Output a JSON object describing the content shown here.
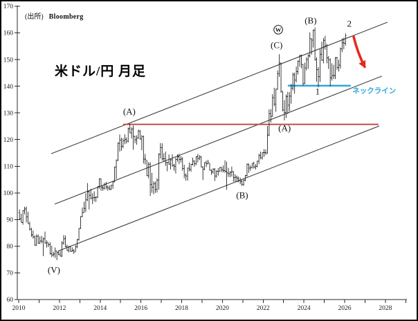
{
  "header": {
    "source_prefix": "(出所)",
    "source_name": "Bloomberg"
  },
  "chart_data": {
    "type": "ohlc-bar",
    "title": "米ドル/円 月足",
    "instrument": "米ドル/円",
    "timeframe": "月足",
    "y_axis": {
      "min": 60,
      "max": 170,
      "step": 10,
      "tick_labels": [
        "60",
        "70",
        "80",
        "90",
        "100",
        "110",
        "120",
        "130",
        "140",
        "150",
        "160",
        "170"
      ]
    },
    "x_axis": {
      "first_tick_year": 2010,
      "last_tick_year": 2029,
      "label_years": [
        2010,
        2012,
        2014,
        2016,
        2018,
        2020,
        2022,
        2024,
        2026,
        2028
      ]
    },
    "series_start": "2010-01",
    "series_name": "USD/JPY monthly high-low-close",
    "bars_hlc": [
      [
        93.8,
        89.8,
        90.3
      ],
      [
        92.2,
        88.9,
        88.9
      ],
      [
        93.5,
        88.1,
        93.4
      ],
      [
        94.8,
        92.0,
        94.0
      ],
      [
        94.9,
        88.9,
        91.0
      ],
      [
        92.9,
        88.5,
        88.4
      ],
      [
        89.2,
        85.9,
        86.4
      ],
      [
        86.9,
        83.5,
        84.2
      ],
      [
        85.9,
        82.9,
        83.5
      ],
      [
        84.0,
        80.2,
        80.4
      ],
      [
        84.4,
        80.2,
        83.7
      ],
      [
        84.5,
        80.9,
        81.1
      ],
      [
        83.7,
        80.9,
        82.0
      ],
      [
        83.9,
        81.1,
        81.8
      ],
      [
        83.3,
        76.3,
        82.8
      ],
      [
        85.5,
        81.0,
        81.2
      ],
      [
        82.2,
        79.5,
        81.5
      ],
      [
        81.3,
        79.7,
        80.6
      ],
      [
        81.5,
        76.9,
        77.2
      ],
      [
        80.2,
        75.9,
        76.7
      ],
      [
        77.9,
        76.1,
        77.1
      ],
      [
        79.5,
        75.6,
        78.2
      ],
      [
        78.3,
        74.8,
        77.6
      ],
      [
        78.2,
        76.6,
        76.9
      ],
      [
        78.3,
        76.2,
        76.3
      ],
      [
        81.9,
        76.0,
        81.2
      ],
      [
        84.2,
        80.6,
        82.8
      ],
      [
        84.0,
        79.7,
        79.8
      ],
      [
        80.6,
        78.2,
        78.4
      ],
      [
        80.1,
        77.7,
        79.8
      ],
      [
        80.1,
        77.9,
        78.1
      ],
      [
        79.6,
        77.9,
        78.4
      ],
      [
        78.9,
        77.1,
        77.9
      ],
      [
        80.4,
        77.9,
        79.8
      ],
      [
        82.8,
        79.3,
        82.5
      ],
      [
        86.8,
        82.1,
        86.7
      ],
      [
        91.3,
        86.5,
        91.1
      ],
      [
        94.5,
        90.9,
        92.6
      ],
      [
        96.7,
        92.6,
        94.2
      ],
      [
        99.9,
        92.8,
        97.4
      ],
      [
        103.7,
        96.9,
        100.5
      ],
      [
        100.9,
        93.8,
        99.1
      ],
      [
        101.5,
        97.6,
        98.0
      ],
      [
        99.9,
        95.8,
        98.2
      ],
      [
        100.6,
        96.8,
        98.3
      ],
      [
        98.7,
        96.6,
        98.4
      ],
      [
        102.4,
        98.0,
        102.4
      ],
      [
        105.4,
        101.6,
        105.3
      ],
      [
        105.4,
        100.8,
        102.0
      ],
      [
        102.8,
        100.8,
        101.8
      ],
      [
        103.8,
        101.2,
        103.2
      ],
      [
        104.1,
        101.3,
        102.2
      ],
      [
        102.8,
        100.8,
        101.8
      ],
      [
        102.8,
        101.1,
        101.3
      ],
      [
        103.1,
        101.1,
        102.8
      ],
      [
        104.3,
        101.5,
        104.1
      ],
      [
        109.9,
        104.0,
        109.7
      ],
      [
        112.5,
        105.2,
        112.3
      ],
      [
        119.0,
        112.0,
        118.6
      ],
      [
        121.9,
        115.5,
        119.8
      ],
      [
        120.7,
        115.8,
        117.5
      ],
      [
        120.5,
        116.7,
        119.6
      ],
      [
        122.0,
        118.3,
        120.1
      ],
      [
        120.8,
        118.5,
        119.4
      ],
      [
        124.5,
        118.9,
        124.1
      ],
      [
        125.9,
        122.5,
        122.5
      ],
      [
        124.6,
        120.4,
        123.9
      ],
      [
        125.3,
        116.2,
        121.2
      ],
      [
        121.4,
        118.6,
        119.9
      ],
      [
        121.6,
        118.1,
        120.6
      ],
      [
        123.8,
        120.3,
        123.1
      ],
      [
        123.6,
        120.0,
        120.2
      ],
      [
        121.7,
        116.0,
        121.1
      ],
      [
        121.5,
        111.0,
        112.7
      ],
      [
        114.6,
        110.7,
        112.6
      ],
      [
        112.2,
        106.3,
        106.5
      ],
      [
        111.5,
        105.5,
        110.7
      ],
      [
        111.5,
        98.9,
        103.2
      ],
      [
        107.5,
        100.0,
        102.1
      ],
      [
        104.3,
        99.5,
        103.4
      ],
      [
        104.3,
        100.0,
        101.3
      ],
      [
        105.5,
        100.1,
        104.8
      ],
      [
        114.8,
        101.2,
        114.5
      ],
      [
        118.7,
        112.9,
        117.0
      ],
      [
        118.6,
        112.1,
        112.8
      ],
      [
        114.9,
        111.6,
        112.8
      ],
      [
        115.5,
        110.1,
        111.4
      ],
      [
        111.6,
        108.1,
        111.5
      ],
      [
        114.4,
        110.5,
        110.8
      ],
      [
        112.9,
        108.8,
        112.4
      ],
      [
        114.5,
        109.8,
        110.3
      ],
      [
        110.9,
        108.3,
        110.0
      ],
      [
        113.3,
        107.3,
        112.5
      ],
      [
        114.5,
        111.7,
        113.6
      ],
      [
        114.7,
        110.8,
        112.5
      ],
      [
        113.8,
        111.4,
        112.7
      ],
      [
        113.4,
        108.3,
        109.2
      ],
      [
        110.5,
        105.5,
        106.7
      ],
      [
        107.3,
        104.6,
        106.3
      ],
      [
        109.5,
        104.6,
        109.3
      ],
      [
        111.4,
        108.1,
        108.8
      ],
      [
        110.9,
        107.9,
        110.7
      ],
      [
        113.2,
        110.3,
        111.9
      ],
      [
        112.2,
        109.8,
        111.0
      ],
      [
        113.7,
        110.4,
        113.6
      ],
      [
        114.6,
        111.4,
        112.9
      ],
      [
        114.2,
        112.3,
        113.5
      ],
      [
        113.8,
        109.6,
        109.7
      ],
      [
        110.0,
        104.8,
        108.9
      ],
      [
        111.5,
        108.5,
        111.4
      ],
      [
        112.1,
        109.7,
        110.9
      ],
      [
        112.4,
        110.8,
        111.4
      ],
      [
        111.1,
        108.4,
        108.5
      ],
      [
        108.8,
        106.8,
        107.9
      ],
      [
        109.3,
        107.2,
        108.8
      ],
      [
        109.3,
        104.5,
        106.3
      ],
      [
        108.5,
        105.7,
        108.1
      ],
      [
        109.3,
        106.5,
        108.0
      ],
      [
        109.7,
        107.9,
        109.5
      ],
      [
        109.7,
        107.8,
        108.6
      ],
      [
        110.3,
        107.7,
        108.4
      ],
      [
        112.2,
        107.5,
        108.1
      ],
      [
        111.7,
        101.2,
        107.5
      ],
      [
        109.4,
        106.0,
        107.2
      ],
      [
        108.1,
        105.9,
        107.8
      ],
      [
        109.9,
        106.1,
        108.0
      ],
      [
        108.2,
        104.2,
        105.8
      ],
      [
        107.0,
        104.2,
        105.9
      ],
      [
        106.5,
        104.0,
        105.5
      ],
      [
        106.1,
        104.0,
        104.7
      ],
      [
        105.7,
        103.2,
        104.3
      ],
      [
        104.8,
        102.6,
        103.2
      ],
      [
        105.2,
        102.6,
        104.7
      ],
      [
        106.7,
        104.4,
        106.6
      ],
      [
        111.0,
        106.1,
        110.7
      ],
      [
        111.0,
        107.5,
        109.3
      ],
      [
        110.3,
        108.3,
        109.5
      ],
      [
        111.1,
        109.2,
        111.1
      ],
      [
        111.7,
        109.1,
        109.7
      ],
      [
        110.8,
        108.7,
        110.0
      ],
      [
        112.1,
        109.6,
        111.9
      ],
      [
        114.7,
        110.8,
        114.0
      ],
      [
        115.5,
        112.6,
        113.2
      ],
      [
        115.2,
        112.5,
        115.1
      ],
      [
        116.4,
        113.5,
        115.1
      ],
      [
        116.3,
        114.2,
        115.0
      ],
      [
        125.1,
        114.7,
        121.7
      ],
      [
        131.3,
        121.3,
        129.7
      ],
      [
        131.4,
        126.4,
        128.7
      ],
      [
        137.0,
        128.6,
        135.7
      ],
      [
        139.4,
        132.5,
        133.3
      ],
      [
        139.1,
        130.4,
        138.9
      ],
      [
        145.9,
        138.7,
        144.7
      ],
      [
        152.0,
        143.5,
        148.7
      ],
      [
        148.8,
        137.5,
        138.1
      ],
      [
        138.2,
        130.6,
        131.1
      ],
      [
        134.8,
        127.2,
        130.2
      ],
      [
        136.9,
        128.1,
        136.2
      ],
      [
        137.9,
        129.6,
        132.9
      ],
      [
        137.8,
        130.6,
        136.3
      ],
      [
        140.9,
        133.5,
        139.3
      ],
      [
        145.1,
        138.4,
        144.3
      ],
      [
        145.1,
        137.2,
        142.3
      ],
      [
        147.4,
        141.5,
        145.5
      ],
      [
        149.7,
        144.4,
        149.4
      ],
      [
        151.7,
        147.3,
        151.5
      ],
      [
        151.9,
        146.7,
        148.2
      ],
      [
        148.3,
        140.2,
        141.0
      ],
      [
        148.8,
        140.8,
        146.9
      ],
      [
        150.9,
        145.9,
        150.0
      ],
      [
        152.0,
        146.5,
        151.4
      ],
      [
        160.2,
        150.8,
        157.8
      ],
      [
        158.0,
        151.9,
        157.3
      ],
      [
        161.3,
        154.5,
        160.9
      ],
      [
        162.0,
        149.6,
        150.0
      ],
      [
        150.9,
        141.7,
        146.2
      ],
      [
        147.2,
        139.6,
        143.6
      ],
      [
        153.9,
        141.6,
        152.0
      ],
      [
        156.7,
        149.5,
        149.8
      ],
      [
        158.1,
        148.6,
        157.2
      ],
      [
        158.9,
        153.7,
        155.2
      ],
      [
        155.9,
        148.6,
        150.6
      ],
      [
        151.3,
        146.5,
        149.9
      ],
      [
        150.5,
        139.9,
        143.1
      ],
      [
        148.6,
        142.1,
        144.0
      ],
      [
        148.0,
        142.7,
        144.0
      ],
      [
        150.9,
        142.7,
        150.7
      ],
      [
        151.0,
        146.2,
        147.0
      ],
      [
        149.9,
        145.5,
        147.9
      ],
      [
        154.5,
        146.6,
        154.0
      ],
      [
        157.9,
        152.8,
        156.3
      ],
      [
        158.2,
        153.9,
        156.1
      ],
      [
        159.8,
        155.3,
        158.9
      ]
    ],
    "channel_lines": [
      {
        "name": "upper",
        "year1": 2011.6,
        "price1": 114.7,
        "year2": 2028.1,
        "price2": 164.0
      },
      {
        "name": "middle",
        "year1": 2011.77,
        "price1": 95.8,
        "year2": 2027.83,
        "price2": 143.8
      },
      {
        "name": "lower",
        "year1": 2011.94,
        "price1": 78.2,
        "year2": 2027.7,
        "price2": 125.1
      }
    ],
    "levels": [
      {
        "name": "resistance-2015-high",
        "price": 125.7,
        "from_year": 2015.13,
        "to_year": 2027.66,
        "color": "#C0504D"
      },
      {
        "name": "neckline",
        "price": 140.2,
        "from_year": 2023.21,
        "to_year": 2026.3,
        "color": "#2BA6DE"
      }
    ],
    "annotations": [
      {
        "id": "wave-V",
        "text": "(V)",
        "year": 2011.73,
        "price": 71.0,
        "style": "wave"
      },
      {
        "id": "wave-A1",
        "text": "(A)",
        "year": 2015.43,
        "price": 130.4,
        "style": "wave"
      },
      {
        "id": "wave-B1",
        "text": "(B)",
        "year": 2020.97,
        "price": 99.0,
        "style": "wave"
      },
      {
        "id": "wave-A2",
        "text": "(A)",
        "year": 2023.05,
        "price": 124.2,
        "style": "wave"
      },
      {
        "id": "wave-C",
        "text": "(C)",
        "year": 2022.66,
        "price": 155.4,
        "style": "wave"
      },
      {
        "id": "wave-W-circled",
        "text": "W",
        "year": 2022.74,
        "price": 161.2,
        "style": "circled"
      },
      {
        "id": "wave-B2",
        "text": "(B)",
        "year": 2024.33,
        "price": 164.6,
        "style": "wave"
      },
      {
        "id": "count-1",
        "text": "1",
        "year": 2024.67,
        "price": 138.0,
        "style": "count"
      },
      {
        "id": "count-2",
        "text": "2",
        "year": 2026.23,
        "price": 163.4,
        "style": "count"
      },
      {
        "id": "neckline-label",
        "text": "ネックライン",
        "year": 2027.45,
        "price": 138.4,
        "style": "neckline",
        "color": "#2BA6DE"
      }
    ],
    "arrow": {
      "from_year": 2026.44,
      "from_price": 158.6,
      "to_year": 2026.98,
      "to_price": 147.3,
      "color": "#E62A1F"
    }
  }
}
